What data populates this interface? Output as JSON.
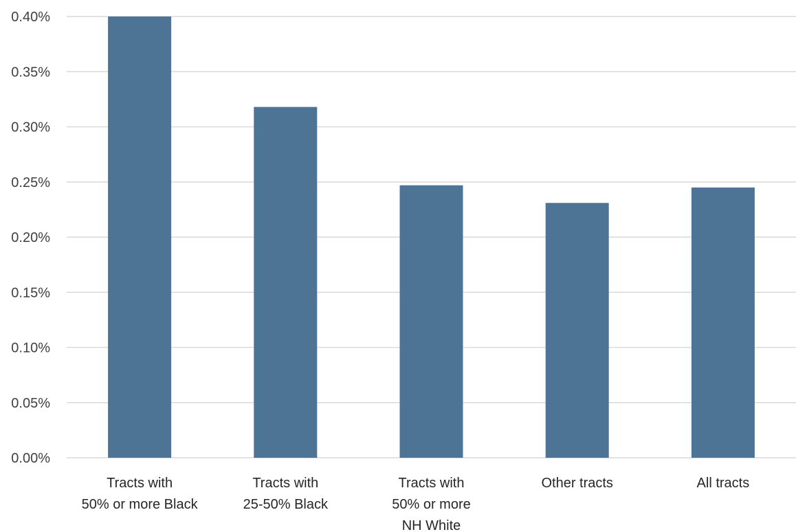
{
  "chart_data": {
    "type": "bar",
    "title": "",
    "xlabel": "",
    "ylabel": "",
    "categories": [
      [
        "Tracts with",
        "50% or more Black"
      ],
      [
        "Tracts with",
        "25-50% Black"
      ],
      [
        "Tracts with",
        "50% or more",
        "NH White"
      ],
      [
        "Other tracts"
      ],
      [
        "All tracts"
      ]
    ],
    "values": [
      0.4,
      0.318,
      0.247,
      0.231,
      0.245
    ],
    "ylim": [
      0,
      0.4
    ],
    "yticks": [
      0.0,
      0.05,
      0.1,
      0.15,
      0.2,
      0.25,
      0.3,
      0.35,
      0.4
    ],
    "ytick_labels": [
      "0.00%",
      "0.05%",
      "0.10%",
      "0.15%",
      "0.20%",
      "0.25%",
      "0.30%",
      "0.35%",
      "0.40%"
    ],
    "grid": true,
    "bar_color": "#4e7495",
    "grid_color": "#d9d9d9"
  }
}
